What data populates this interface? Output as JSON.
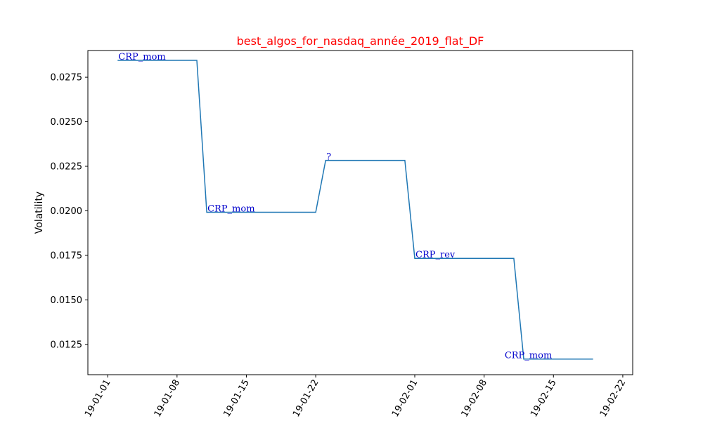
{
  "chart_data": {
    "type": "line",
    "title": "best_algos_for_nasdaq_année_2019_flat_DF",
    "xlabel": "",
    "ylabel": "Volatility",
    "xlim": [
      "2018-12-30",
      "2019-02-23"
    ],
    "ylim": [
      0.0108,
      0.029
    ],
    "grid": false,
    "x_ticks": [
      "2019-01-01",
      "2019-01-08",
      "2019-01-15",
      "2019-01-22",
      "2019-02-01",
      "2019-02-08",
      "2019-02-15",
      "2019-02-22"
    ],
    "x_tick_labels": [
      "19-01-01",
      "19-01-08",
      "19-01-15",
      "19-01-22",
      "19-02-01",
      "19-02-08",
      "19-02-15",
      "19-02-22"
    ],
    "y_ticks": [
      0.0125,
      0.015,
      0.0175,
      0.02,
      0.0225,
      0.025,
      0.0275
    ],
    "y_tick_labels": [
      "0.0125",
      "0.0150",
      "0.0175",
      "0.0200",
      "0.0225",
      "0.0250",
      "0.0275"
    ],
    "series": [
      {
        "x": [
          "2019-01-02",
          "2019-01-10",
          "2019-01-11",
          "2019-01-22",
          "2019-01-23",
          "2019-01-31",
          "2019-02-01",
          "2019-02-11",
          "2019-02-12",
          "2019-02-19"
        ],
        "y": [
          0.02845,
          0.02845,
          0.01992,
          0.01992,
          0.02283,
          0.02283,
          0.01733,
          0.01733,
          0.01168,
          0.01168
        ],
        "color": "#1f77b4"
      }
    ],
    "annotations": [
      {
        "text": "CRP_mom",
        "x": "2019-01-02",
        "y": 0.02845
      },
      {
        "text": "CRP_mom",
        "x": "2019-01-11",
        "y": 0.01992
      },
      {
        "text": "?",
        "x": "2019-01-23",
        "y": 0.02283
      },
      {
        "text": "CRP_rev",
        "x": "2019-02-01",
        "y": 0.01733
      },
      {
        "text": "CRP_mom",
        "x": "2019-02-10",
        "y": 0.01168
      }
    ],
    "colors": {
      "title": "#ff0000",
      "line": "#1f77b4",
      "annotation": "#0000cc"
    }
  }
}
